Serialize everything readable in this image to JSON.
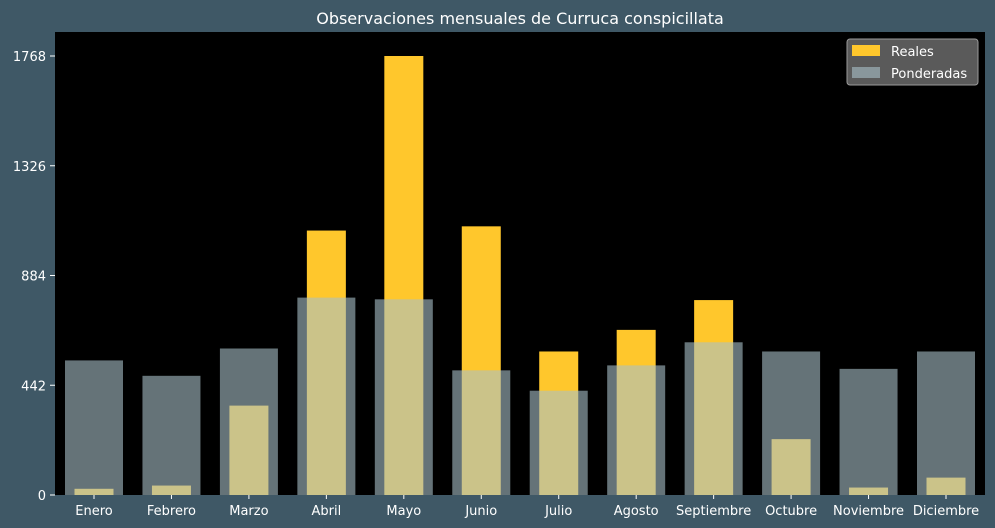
{
  "chart_data": {
    "type": "bar",
    "title": "Observaciones mensuales de Curruca conspicillata",
    "categories": [
      "Enero",
      "Febrero",
      "Marzo",
      "Abril",
      "Mayo",
      "Junio",
      "Julio",
      "Agosto",
      "Septiembre",
      "Octubre",
      "Noviembre",
      "Diciembre"
    ],
    "series": [
      {
        "name": "Reales",
        "color": "#ffc72c",
        "values": [
          25,
          38,
          360,
          1065,
          1768,
          1082,
          578,
          665,
          785,
          225,
          30,
          70
        ]
      },
      {
        "name": "Ponderadas",
        "color": "#a9c0c8",
        "values": [
          542,
          480,
          590,
          795,
          788,
          502,
          420,
          522,
          615,
          578,
          508,
          578
        ]
      }
    ],
    "yticks": [
      0,
      442,
      884,
      1326,
      1768
    ],
    "ylim": [
      0,
      1768
    ],
    "xlabel": "",
    "ylabel": "",
    "legend": "top-right",
    "grid": false,
    "background": "#000000",
    "figure_background": "#3f5866"
  }
}
